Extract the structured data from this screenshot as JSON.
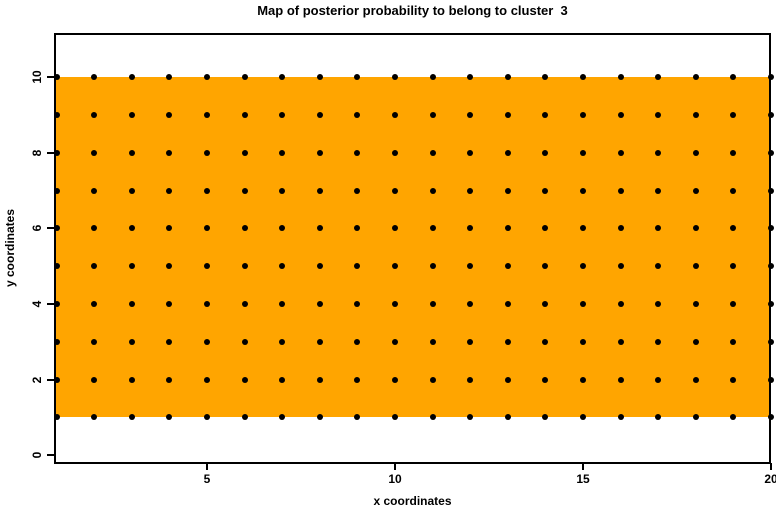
{
  "title": "Map of posterior probability to belong to cluster  3",
  "colors": {
    "region_fill": "#FFA500",
    "point": "#000000",
    "axis": "#000000",
    "background": "#FFFFFF"
  },
  "chart_data": {
    "type": "heatmap",
    "title": "Map of posterior probability to belong to cluster  3",
    "xlabel": "x coordinates",
    "ylabel": "y coordinates",
    "x_values": [
      1,
      2,
      3,
      4,
      5,
      6,
      7,
      8,
      9,
      10,
      11,
      12,
      13,
      14,
      15,
      16,
      17,
      18,
      19,
      20
    ],
    "y_values": [
      1,
      2,
      3,
      4,
      5,
      6,
      7,
      8,
      9,
      10
    ],
    "x_ticks": [
      5,
      10,
      15,
      20
    ],
    "y_ticks": [
      0,
      2,
      4,
      6,
      8,
      10
    ],
    "xlim": [
      0.9,
      20
    ],
    "ylim": [
      -0.2,
      11.2
    ],
    "grid": false,
    "legend_position": "none",
    "region": {
      "x_min": 1,
      "x_max": 20,
      "y_min": 1,
      "y_max": 10,
      "fill_color": "#FFA500",
      "value": "uniform posterior probability over entire grid"
    },
    "points": {
      "marker": "filled-circle",
      "color": "#000000",
      "grid": "black dot at every integer (x,y), x 1-20, y 1-10"
    }
  }
}
